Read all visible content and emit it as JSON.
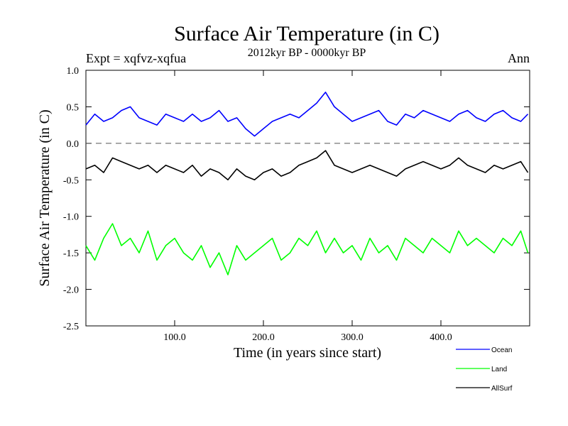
{
  "chart_data": {
    "type": "line",
    "title": "Surface Air Temperature (in C)",
    "subtitle": "2012kyr BP - 0000kyr BP",
    "experiment_label": "Expt = xqfvz-xqfua",
    "season_label": "Ann",
    "xlabel": "Time (in years since start)",
    "ylabel": "Surface Air Temperature (in C)",
    "xlim": [
      0,
      500
    ],
    "ylim": [
      -2.5,
      1.0
    ],
    "x_ticks": [
      100,
      200,
      300,
      400
    ],
    "x_tick_labels": [
      "100.0",
      "200.0",
      "300.0",
      "400.0"
    ],
    "y_ticks": [
      -2.5,
      -2.0,
      -1.5,
      -1.0,
      -0.5,
      0.0,
      0.5,
      1.0
    ],
    "y_tick_labels": [
      "-2.5",
      "-2.0",
      "-1.5",
      "-1.0",
      "-0.5",
      "0.0",
      "0.5",
      "1.0"
    ],
    "reference_line": {
      "y": 0.0,
      "style": "dashed"
    },
    "legend_position": "bottom-right",
    "series": [
      {
        "name": "Ocean",
        "color": "#0000ff",
        "x": [
          0,
          10,
          20,
          30,
          40,
          50,
          60,
          70,
          80,
          90,
          100,
          110,
          120,
          130,
          140,
          150,
          160,
          170,
          180,
          190,
          200,
          210,
          220,
          230,
          240,
          250,
          260,
          270,
          280,
          290,
          300,
          310,
          320,
          330,
          340,
          350,
          360,
          370,
          380,
          390,
          400,
          410,
          420,
          430,
          440,
          450,
          460,
          470,
          480,
          490,
          498
        ],
        "values": [
          0.25,
          0.4,
          0.3,
          0.35,
          0.45,
          0.5,
          0.35,
          0.3,
          0.25,
          0.4,
          0.35,
          0.3,
          0.4,
          0.3,
          0.35,
          0.45,
          0.3,
          0.35,
          0.2,
          0.1,
          0.2,
          0.3,
          0.35,
          0.4,
          0.35,
          0.45,
          0.55,
          0.7,
          0.5,
          0.4,
          0.3,
          0.35,
          0.4,
          0.45,
          0.3,
          0.25,
          0.4,
          0.35,
          0.45,
          0.4,
          0.35,
          0.3,
          0.4,
          0.45,
          0.35,
          0.3,
          0.4,
          0.45,
          0.35,
          0.3,
          0.4
        ]
      },
      {
        "name": "Land",
        "color": "#00ff00",
        "x": [
          0,
          10,
          20,
          30,
          40,
          50,
          60,
          70,
          80,
          90,
          100,
          110,
          120,
          130,
          140,
          150,
          160,
          170,
          180,
          190,
          200,
          210,
          220,
          230,
          240,
          250,
          260,
          270,
          280,
          290,
          300,
          310,
          320,
          330,
          340,
          350,
          360,
          370,
          380,
          390,
          400,
          410,
          420,
          430,
          440,
          450,
          460,
          470,
          480,
          490,
          498
        ],
        "values": [
          -1.4,
          -1.6,
          -1.3,
          -1.1,
          -1.4,
          -1.3,
          -1.5,
          -1.2,
          -1.6,
          -1.4,
          -1.3,
          -1.5,
          -1.6,
          -1.4,
          -1.7,
          -1.5,
          -1.8,
          -1.4,
          -1.6,
          -1.5,
          -1.4,
          -1.3,
          -1.6,
          -1.5,
          -1.3,
          -1.4,
          -1.2,
          -1.5,
          -1.3,
          -1.5,
          -1.4,
          -1.6,
          -1.3,
          -1.5,
          -1.4,
          -1.6,
          -1.3,
          -1.4,
          -1.5,
          -1.3,
          -1.4,
          -1.5,
          -1.2,
          -1.4,
          -1.3,
          -1.4,
          -1.5,
          -1.3,
          -1.4,
          -1.2,
          -1.5
        ]
      },
      {
        "name": "AllSurf",
        "color": "#000000",
        "x": [
          0,
          10,
          20,
          30,
          40,
          50,
          60,
          70,
          80,
          90,
          100,
          110,
          120,
          130,
          140,
          150,
          160,
          170,
          180,
          190,
          200,
          210,
          220,
          230,
          240,
          250,
          260,
          270,
          280,
          290,
          300,
          310,
          320,
          330,
          340,
          350,
          360,
          370,
          380,
          390,
          400,
          410,
          420,
          430,
          440,
          450,
          460,
          470,
          480,
          490,
          498
        ],
        "values": [
          -0.35,
          -0.3,
          -0.4,
          -0.2,
          -0.25,
          -0.3,
          -0.35,
          -0.3,
          -0.4,
          -0.3,
          -0.35,
          -0.4,
          -0.3,
          -0.45,
          -0.35,
          -0.4,
          -0.5,
          -0.35,
          -0.45,
          -0.5,
          -0.4,
          -0.35,
          -0.45,
          -0.4,
          -0.3,
          -0.25,
          -0.2,
          -0.1,
          -0.3,
          -0.35,
          -0.4,
          -0.35,
          -0.3,
          -0.35,
          -0.4,
          -0.45,
          -0.35,
          -0.3,
          -0.25,
          -0.3,
          -0.35,
          -0.3,
          -0.2,
          -0.3,
          -0.35,
          -0.4,
          -0.3,
          -0.35,
          -0.3,
          -0.25,
          -0.4
        ]
      }
    ]
  }
}
